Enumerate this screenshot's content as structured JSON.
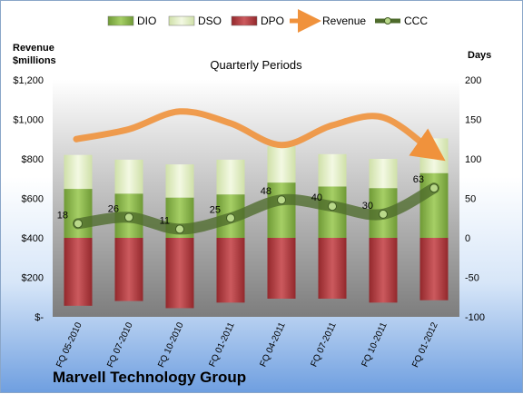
{
  "company": "Marvell Technology Group",
  "chart_data": {
    "type": "bar",
    "subtitle": "Quarterly Periods",
    "left_axis_title": [
      "Revenue",
      "$millions"
    ],
    "right_axis_title": "Days",
    "categories": [
      "FQ 05-2010",
      "FQ 07-2010",
      "FQ 10-2010",
      "FQ 01-2011",
      "FQ 04-2011",
      "FQ 07-2011",
      "FQ 10-2011",
      "FQ 01-2012"
    ],
    "left_ticks": [
      "$-",
      "$200",
      "$400",
      "$600",
      "$800",
      "$1,000",
      "$1,200"
    ],
    "left_range": [
      0,
      1200
    ],
    "right_ticks": [
      "-100",
      "-50",
      "0",
      "50",
      "100",
      "150",
      "200"
    ],
    "right_range": [
      -100,
      200
    ],
    "series": [
      {
        "name": "DIO",
        "type": "stacked-bar",
        "color": "#8fba52",
        "axis": "right",
        "values": [
          62,
          56,
          51,
          55,
          70,
          65,
          63,
          82
        ]
      },
      {
        "name": "DSO",
        "type": "stacked-bar",
        "color": "#e4f0c8",
        "axis": "right",
        "values": [
          43,
          43,
          42,
          44,
          46,
          41,
          37,
          44
        ]
      },
      {
        "name": "DPO",
        "type": "stacked-bar",
        "color": "#b84347",
        "axis": "right",
        "values": [
          -86,
          -80,
          -89,
          -82,
          -77,
          -77,
          -82,
          -79
        ]
      },
      {
        "name": "Revenue",
        "type": "line",
        "color": "#f0923c",
        "axis": "left",
        "values": [
          900,
          950,
          1040,
          980,
          870,
          970,
          1010,
          830
        ]
      },
      {
        "name": "CCC",
        "type": "line",
        "color": "#4e6b2c",
        "axis": "right",
        "values": [
          18,
          26,
          11,
          25,
          48,
          40,
          30,
          63
        ]
      }
    ],
    "data_labels": [
      "18",
      "26",
      "11",
      "25",
      "48",
      "40",
      "30",
      "63"
    ],
    "legend_position": "top",
    "grid": false
  }
}
